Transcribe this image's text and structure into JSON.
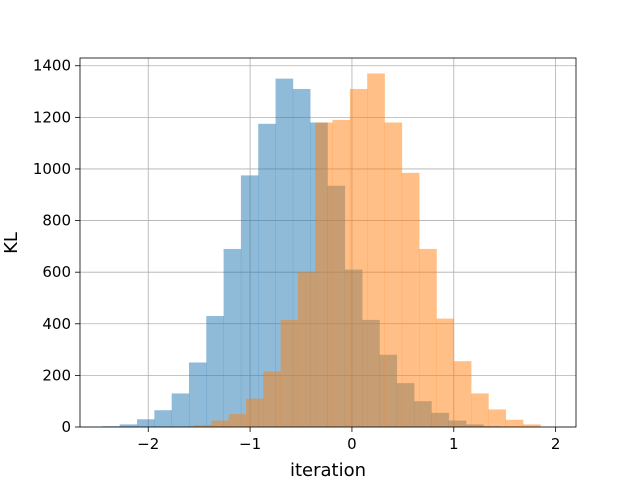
{
  "chart_data": {
    "type": "bar",
    "title": "",
    "xlabel": "iteration",
    "ylabel": "KL",
    "xlim": [
      -2.67,
      2.2
    ],
    "ylim": [
      0,
      1430
    ],
    "xticks": [
      -2,
      -1,
      0,
      1,
      2
    ],
    "xtick_labels": [
      "−2",
      "−1",
      "0",
      "1",
      "2"
    ],
    "yticks": [
      0,
      200,
      400,
      600,
      800,
      1000,
      1200,
      1400
    ],
    "ytick_labels": [
      "0",
      "200",
      "400",
      "600",
      "800",
      "1000",
      "1200",
      "1400"
    ],
    "grid": true,
    "series": [
      {
        "color": "#1f77b4",
        "alpha": 0.5,
        "bin_start": -2.45,
        "bin_width": 0.17,
        "counts": [
          3,
          10,
          30,
          65,
          130,
          250,
          430,
          690,
          975,
          1175,
          1350,
          1310,
          1180,
          935,
          610,
          415,
          280,
          170,
          100,
          55,
          25,
          10,
          3
        ]
      },
      {
        "color": "#ff7f0e",
        "alpha": 0.5,
        "bin_start": -1.55,
        "bin_width": 0.17,
        "counts": [
          8,
          25,
          50,
          110,
          215,
          415,
          600,
          1180,
          1190,
          1310,
          1370,
          1180,
          985,
          690,
          420,
          255,
          130,
          68,
          28,
          10
        ]
      }
    ]
  }
}
